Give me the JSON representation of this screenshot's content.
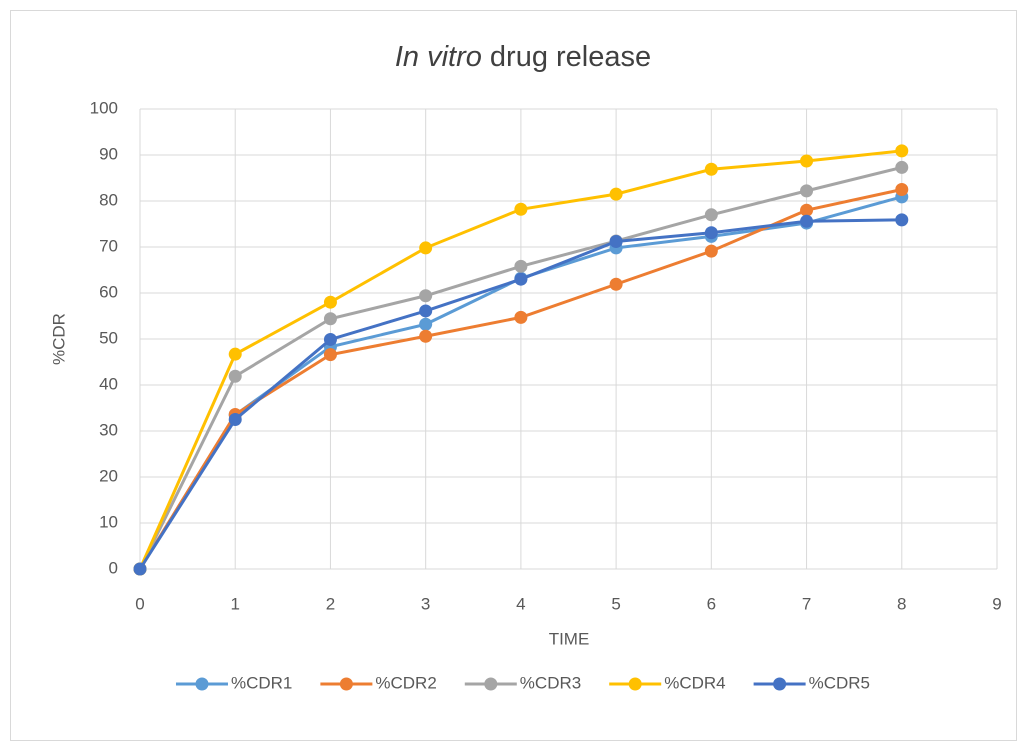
{
  "chart_data": {
    "type": "line",
    "title": [
      {
        "text": "In vitro",
        "italic": true
      },
      {
        "text": "drug release",
        "italic": false
      }
    ],
    "x_label": "TIME",
    "y_label": "%CDR",
    "x": [
      0,
      1,
      2,
      3,
      4,
      5,
      6,
      7,
      8
    ],
    "series": [
      {
        "name": "%CDR1",
        "color": "#5b9bd5",
        "values": [
          0,
          33.5,
          48.3,
          53.2,
          63.2,
          69.8,
          72.3,
          75.2,
          80.9
        ]
      },
      {
        "name": "%CDR2",
        "color": "#ed7d31",
        "values": [
          0,
          33.6,
          46.6,
          50.6,
          54.7,
          61.9,
          69.1,
          78.0,
          82.5
        ]
      },
      {
        "name": "%CDR3",
        "color": "#a5a5a5",
        "values": [
          0,
          41.9,
          54.4,
          59.4,
          65.8,
          71.3,
          77.0,
          82.2,
          87.3
        ]
      },
      {
        "name": "%CDR4",
        "color": "#ffc000",
        "values": [
          0,
          46.7,
          58.0,
          69.8,
          78.2,
          81.5,
          86.9,
          88.7,
          90.9
        ]
      },
      {
        "name": "%CDR5",
        "color": "#4472c4",
        "values": [
          0,
          32.5,
          49.9,
          56.1,
          63.0,
          71.2,
          73.1,
          75.6,
          75.9
        ]
      }
    ],
    "xlim": [
      0,
      9
    ],
    "xticks": [
      0,
      1,
      2,
      3,
      4,
      5,
      6,
      7,
      8,
      9
    ],
    "ylim": [
      0,
      100
    ],
    "yticks": [
      0,
      10,
      20,
      30,
      40,
      50,
      60,
      70,
      80,
      90,
      100
    ],
    "grid": true,
    "legend": "bottom"
  }
}
